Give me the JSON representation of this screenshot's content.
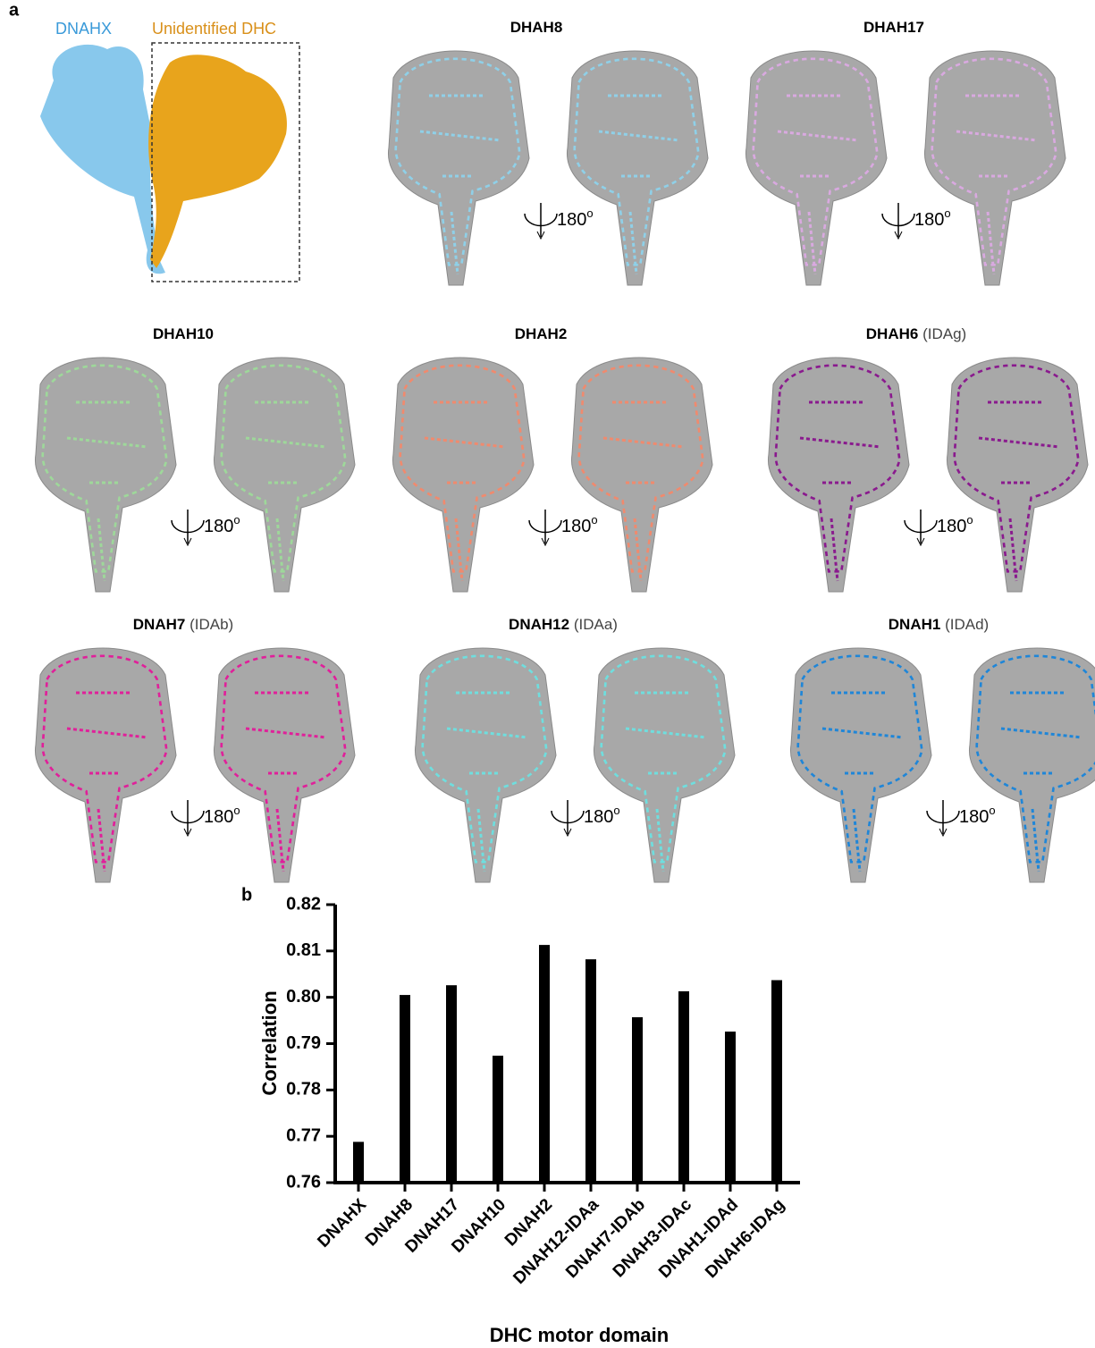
{
  "panel_a": {
    "label": "a",
    "legend": [
      {
        "name": "DNAHX",
        "color": "#3a9ad9"
      },
      {
        "name": "Unidentified DHC",
        "color": "#d9901a"
      }
    ],
    "rotation": "180",
    "degree": "o",
    "panels": [
      {
        "name": "DHAH8",
        "color": "#8fd0e8"
      },
      {
        "name": "DHAH17",
        "color": "#d9a9e0"
      },
      {
        "name": "DHAH10",
        "color": "#9ed89a"
      },
      {
        "name": "DHAH2",
        "color": "#f08a6e"
      },
      {
        "name": "DHAH6",
        "subtitle": "(IDAg)",
        "color": "#8a1a8e"
      },
      {
        "name": "DNAH7",
        "subtitle": "(IDAb)",
        "color": "#e0209a"
      },
      {
        "name": "DNAH12",
        "subtitle": "(IDAa)",
        "color": "#6fdede"
      },
      {
        "name": "DNAH1",
        "subtitle": "(IDAd)",
        "color": "#1f86d8"
      }
    ]
  },
  "chart_data": {
    "type": "bar",
    "label": "b",
    "x_label": "DHC motor domain",
    "y_label": "Correlation",
    "categories": [
      "DNAHX",
      "DNAH8",
      "DNAH17",
      "DNAH10",
      "DNAH2",
      "DNAH12-IDAa",
      "DNAH7-IDAb",
      "DNAH3-IDAc",
      "DNAH1-IDAd",
      "DNAH6-IDAg"
    ],
    "values": [
      0.7688,
      0.8005,
      0.8026,
      0.7874,
      0.8113,
      0.8082,
      0.7957,
      0.8013,
      0.7926,
      0.8037
    ],
    "color": "#000000",
    "ylim": [
      0.76,
      0.82
    ],
    "yticks": [
      {
        "value": 0.76,
        "label": "0.76"
      },
      {
        "value": 0.77,
        "label": "0.77"
      },
      {
        "value": 0.78,
        "label": "0.78"
      },
      {
        "value": 0.79,
        "label": "0.79"
      },
      {
        "value": 0.8,
        "label": "0.80"
      },
      {
        "value": 0.81,
        "label": "0.81"
      },
      {
        "value": 0.82,
        "label": "0.82"
      }
    ]
  }
}
